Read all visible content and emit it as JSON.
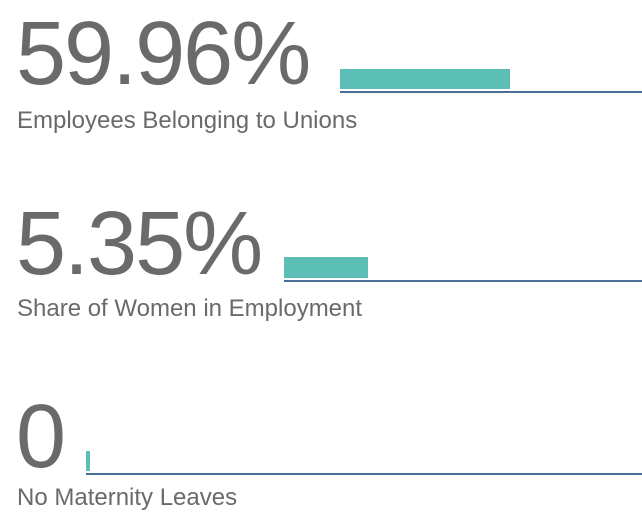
{
  "items": [
    {
      "value": "59.96%",
      "label": "Employees Belonging to Unions"
    },
    {
      "value": "5.35%",
      "label": "Share of Women in Employment"
    },
    {
      "value": "0",
      "label": "No Maternity Leaves"
    }
  ]
}
